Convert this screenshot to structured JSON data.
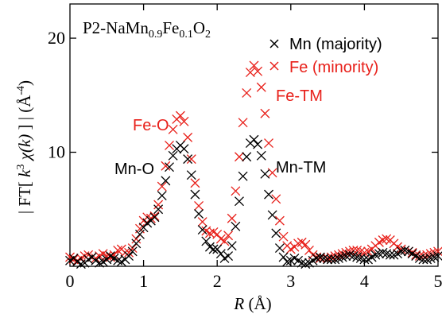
{
  "chart_data": {
    "type": "scatter",
    "title_parts": {
      "prefix": "P2-NaMn",
      "sub1": "0.9",
      "mid": "Fe",
      "sub2": "0.1",
      "suffix": "O",
      "sub3": "2"
    },
    "xlabel": {
      "italic": "R",
      "rest": " (Å)"
    },
    "ylabel": {
      "pre": "| FT[ ",
      "k": "k",
      "exp3": "3",
      "chi": " χ",
      "arg": "(k)",
      "post": " ] |  (Å",
      "exp": "-4",
      "close": ")"
    },
    "xlim": [
      0,
      5
    ],
    "ylim": [
      0,
      23
    ],
    "xticks": [
      "0",
      "1",
      "2",
      "3",
      "4",
      "5"
    ],
    "yticks": [
      "10",
      "20"
    ],
    "ytick_values": [
      10,
      20
    ],
    "legend_position": "top-right",
    "colors": {
      "mn": "#000000",
      "fe": "#e8201a"
    },
    "series": [
      {
        "name": "Mn (majority)",
        "x": [
          0.0,
          0.05,
          0.1,
          0.15,
          0.2,
          0.25,
          0.3,
          0.35,
          0.4,
          0.45,
          0.5,
          0.55,
          0.6,
          0.65,
          0.7,
          0.75,
          0.8,
          0.85,
          0.9,
          0.95,
          1.0,
          1.05,
          1.1,
          1.15,
          1.2,
          1.25,
          1.3,
          1.35,
          1.4,
          1.45,
          1.5,
          1.55,
          1.6,
          1.65,
          1.7,
          1.75,
          1.8,
          1.85,
          1.9,
          1.95,
          2.0,
          2.05,
          2.1,
          2.15,
          2.2,
          2.25,
          2.3,
          2.35,
          2.4,
          2.45,
          2.5,
          2.55,
          2.6,
          2.65,
          2.7,
          2.75,
          2.8,
          2.85,
          2.9,
          2.95,
          3.0,
          3.05,
          3.1,
          3.15,
          3.2,
          3.25,
          3.3,
          3.35,
          3.4,
          3.45,
          3.5,
          3.55,
          3.6,
          3.65,
          3.7,
          3.75,
          3.8,
          3.85,
          3.9,
          3.95,
          4.0,
          4.05,
          4.1,
          4.15,
          4.2,
          4.25,
          4.3,
          4.35,
          4.4,
          4.45,
          4.5,
          4.55,
          4.6,
          4.65,
          4.7,
          4.75,
          4.8,
          4.85,
          4.9,
          4.95,
          5.0
        ],
        "y": [
          0.5,
          0.7,
          0.4,
          0.2,
          0.3,
          0.6,
          0.8,
          0.5,
          0.3,
          0.4,
          0.6,
          0.9,
          0.7,
          0.5,
          0.4,
          0.6,
          0.9,
          1.3,
          2.0,
          2.8,
          3.4,
          3.8,
          4.0,
          4.3,
          5.0,
          6.2,
          7.5,
          8.7,
          9.7,
          10.3,
          10.6,
          10.3,
          9.4,
          8.0,
          6.3,
          4.6,
          3.2,
          2.2,
          1.7,
          1.5,
          1.5,
          1.1,
          0.7,
          0.9,
          1.8,
          3.5,
          5.7,
          7.9,
          9.6,
          10.8,
          11.1,
          10.7,
          9.7,
          8.1,
          6.3,
          4.5,
          2.9,
          1.6,
          0.8,
          0.4,
          0.5,
          0.7,
          0.5,
          0.3,
          0.2,
          0.3,
          0.5,
          0.7,
          0.8,
          0.7,
          0.6,
          0.6,
          0.6,
          0.7,
          0.8,
          0.9,
          1.0,
          0.9,
          0.8,
          0.7,
          0.6,
          0.6,
          0.8,
          1.0,
          1.1,
          1.2,
          1.1,
          1.0,
          1.0,
          1.1,
          1.3,
          1.4,
          1.3,
          1.1,
          0.9,
          0.7,
          0.6,
          0.6,
          0.7,
          0.8,
          0.9
        ]
      },
      {
        "name": "Fe  (minority)",
        "x": [
          0.0,
          0.05,
          0.1,
          0.15,
          0.2,
          0.25,
          0.3,
          0.35,
          0.4,
          0.45,
          0.5,
          0.55,
          0.6,
          0.65,
          0.7,
          0.75,
          0.8,
          0.85,
          0.9,
          0.95,
          1.0,
          1.05,
          1.1,
          1.15,
          1.2,
          1.25,
          1.3,
          1.35,
          1.4,
          1.45,
          1.5,
          1.55,
          1.6,
          1.65,
          1.7,
          1.75,
          1.8,
          1.85,
          1.9,
          1.95,
          2.0,
          2.05,
          2.1,
          2.15,
          2.2,
          2.25,
          2.3,
          2.35,
          2.4,
          2.45,
          2.5,
          2.55,
          2.6,
          2.65,
          2.7,
          2.75,
          2.8,
          2.85,
          2.9,
          2.95,
          3.0,
          3.05,
          3.1,
          3.15,
          3.2,
          3.25,
          3.3,
          3.35,
          3.4,
          3.45,
          3.5,
          3.55,
          3.6,
          3.65,
          3.7,
          3.75,
          3.8,
          3.85,
          3.9,
          3.95,
          4.0,
          4.05,
          4.1,
          4.15,
          4.2,
          4.25,
          4.3,
          4.35,
          4.4,
          4.45,
          4.5,
          4.55,
          4.6,
          4.65,
          4.7,
          4.75,
          4.8,
          4.85,
          4.9,
          4.95,
          5.0
        ],
        "y": [
          0.8,
          0.6,
          0.5,
          0.7,
          0.9,
          1.0,
          0.8,
          0.7,
          0.9,
          1.1,
          0.9,
          0.8,
          1.0,
          1.4,
          1.5,
          1.2,
          1.2,
          1.6,
          2.4,
          3.3,
          4.0,
          4.3,
          4.2,
          4.4,
          5.4,
          7.0,
          8.8,
          10.6,
          12.0,
          12.9,
          13.2,
          12.7,
          11.3,
          9.4,
          7.3,
          5.3,
          3.9,
          3.1,
          2.9,
          3.0,
          2.8,
          2.4,
          2.2,
          2.7,
          4.2,
          6.6,
          9.6,
          12.6,
          15.2,
          17.0,
          17.6,
          17.1,
          15.7,
          13.4,
          10.8,
          8.2,
          5.9,
          4.0,
          2.6,
          1.8,
          1.5,
          1.7,
          2.0,
          2.1,
          1.9,
          1.4,
          1.0,
          0.8,
          0.7,
          0.7,
          0.7,
          0.8,
          0.9,
          1.0,
          1.1,
          1.2,
          1.3,
          1.4,
          1.4,
          1.3,
          1.2,
          1.3,
          1.5,
          1.8,
          2.1,
          2.3,
          2.4,
          2.3,
          2.0,
          1.7,
          1.5,
          1.4,
          1.3,
          1.2,
          1.0,
          0.9,
          0.9,
          1.0,
          1.1,
          1.2,
          1.3
        ]
      }
    ],
    "annotations": [
      {
        "text": "Fe-O",
        "series": 1
      },
      {
        "text": "Mn-O",
        "series": 0
      },
      {
        "text": "Fe-TM",
        "series": 1
      },
      {
        "text": "Mn-TM",
        "series": 0
      }
    ]
  }
}
